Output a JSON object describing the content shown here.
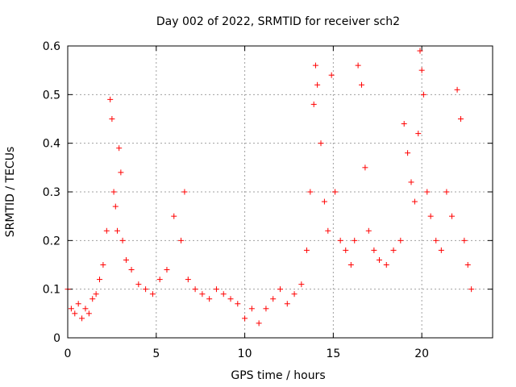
{
  "chart_data": {
    "type": "scatter",
    "title": "Day 002 of 2022, SRMTID for receiver sch2",
    "xlabel": "GPS time / hours",
    "ylabel": "SRMTID / TECUs",
    "xlim": [
      0,
      24
    ],
    "ylim": [
      0,
      0.6
    ],
    "xticks": [
      0,
      5,
      10,
      15,
      20
    ],
    "xtick_labels": [
      "0",
      "5",
      "10",
      "15",
      "20"
    ],
    "yticks": [
      0,
      0.1,
      0.2,
      0.3,
      0.4,
      0.5,
      0.6
    ],
    "ytick_labels": [
      "0",
      "0.1",
      "0.2",
      "0.3",
      "0.4",
      "0.5",
      "0.6"
    ],
    "grid": true,
    "legend": "none",
    "marker": "+",
    "series": [
      {
        "name": "SRMTID",
        "color": "#ff0000",
        "x": [
          0.0,
          0.2,
          0.4,
          0.6,
          0.8,
          1.0,
          1.2,
          1.4,
          1.6,
          1.8,
          2.0,
          2.2,
          2.4,
          2.5,
          2.6,
          2.7,
          2.8,
          2.9,
          3.0,
          3.1,
          3.3,
          3.6,
          4.0,
          4.4,
          4.8,
          5.2,
          5.6,
          6.0,
          6.4,
          6.6,
          6.8,
          7.2,
          7.6,
          8.0,
          8.4,
          8.8,
          9.2,
          9.6,
          10.0,
          10.4,
          10.8,
          11.2,
          11.6,
          12.0,
          12.4,
          12.8,
          13.2,
          13.5,
          13.7,
          13.9,
          14.0,
          14.1,
          14.3,
          14.5,
          14.7,
          14.9,
          15.1,
          15.4,
          15.7,
          16.0,
          16.2,
          16.4,
          16.6,
          16.8,
          17.0,
          17.3,
          17.6,
          18.0,
          18.4,
          18.8,
          19.0,
          19.2,
          19.4,
          19.6,
          19.8,
          19.9,
          20.0,
          20.1,
          20.3,
          20.5,
          20.8,
          21.1,
          21.4,
          21.7,
          22.0,
          22.2,
          22.4,
          22.6,
          22.8
        ],
        "y": [
          0.1,
          0.06,
          0.05,
          0.07,
          0.04,
          0.06,
          0.05,
          0.08,
          0.09,
          0.12,
          0.15,
          0.22,
          0.49,
          0.45,
          0.3,
          0.27,
          0.22,
          0.39,
          0.34,
          0.2,
          0.16,
          0.14,
          0.11,
          0.1,
          0.09,
          0.12,
          0.14,
          0.25,
          0.2,
          0.3,
          0.12,
          0.1,
          0.09,
          0.08,
          0.1,
          0.09,
          0.08,
          0.07,
          0.04,
          0.06,
          0.03,
          0.06,
          0.08,
          0.1,
          0.07,
          0.09,
          0.11,
          0.18,
          0.3,
          0.48,
          0.56,
          0.52,
          0.4,
          0.28,
          0.22,
          0.54,
          0.3,
          0.2,
          0.18,
          0.15,
          0.2,
          0.56,
          0.52,
          0.35,
          0.22,
          0.18,
          0.16,
          0.15,
          0.18,
          0.2,
          0.44,
          0.38,
          0.32,
          0.28,
          0.42,
          0.59,
          0.55,
          0.5,
          0.3,
          0.25,
          0.2,
          0.18,
          0.3,
          0.25,
          0.51,
          0.45,
          0.2,
          0.15,
          0.1
        ]
      }
    ]
  }
}
